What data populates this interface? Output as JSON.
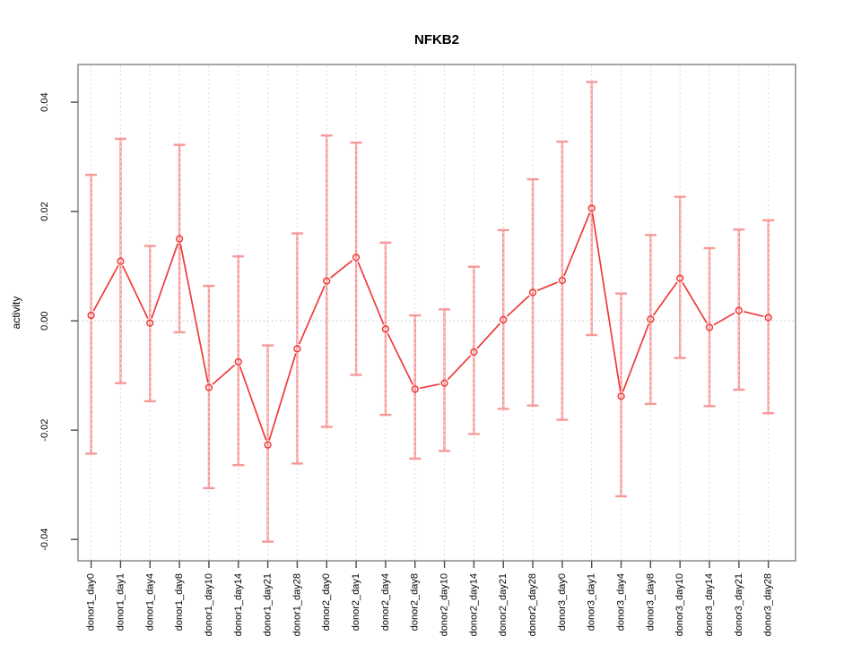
{
  "window": {
    "background": "#ffffff"
  },
  "chart_data": {
    "type": "line",
    "title": "NFKB2",
    "xlabel": "",
    "ylabel": "activity",
    "legend": "none",
    "ylim": [
      -0.0439,
      0.0469
    ],
    "y_ticks": [
      -0.04,
      -0.02,
      0.0,
      0.02,
      0.04
    ],
    "y_tick_labels": [
      "-0.04",
      "-0.02",
      "0.00",
      "0.02",
      "0.04"
    ],
    "grid": {
      "vertical_dashed_per_category": true,
      "horizontal_dotted_zero_line": true
    },
    "marker": "open-circle",
    "colors": {
      "series": "#ee3b3a",
      "error_bars": "#f59a98",
      "grid": "#dcdcdc",
      "zero_line": "#c6c6c6",
      "axis_box": "#9c9c9c",
      "tick": "#4a4a4a",
      "text": "#000000"
    },
    "categories": [
      "donor1_day0",
      "donor1_day1",
      "donor1_day4",
      "donor1_day8",
      "donor1_day10",
      "donor1_day14",
      "donor1_day21",
      "donor1_day28",
      "donor2_day0",
      "donor2_day1",
      "donor2_day4",
      "donor2_day8",
      "donor2_day10",
      "donor2_day14",
      "donor2_day21",
      "donor2_day28",
      "donor3_day0",
      "donor3_day1",
      "donor3_day4",
      "donor3_day8",
      "donor3_day10",
      "donor3_day14",
      "donor3_day21",
      "donor3_day28"
    ],
    "series": [
      {
        "name": "activity",
        "values": [
          0.001,
          0.0109,
          -0.0004,
          0.015,
          -0.0122,
          -0.0075,
          -0.0227,
          -0.0051,
          0.0073,
          0.0116,
          -0.0015,
          -0.0125,
          -0.0114,
          -0.0057,
          0.0002,
          0.0052,
          0.0074,
          0.0206,
          -0.0138,
          0.0003,
          0.0078,
          -0.0012,
          0.0019,
          0.0006
        ],
        "error_high": [
          0.0267,
          0.0333,
          0.0137,
          0.0322,
          0.0064,
          0.0118,
          -0.0045,
          0.016,
          0.0339,
          0.0326,
          0.0143,
          0.001,
          0.0021,
          0.0099,
          0.0166,
          0.0259,
          0.0328,
          0.0437,
          0.005,
          0.0157,
          0.0227,
          0.0133,
          0.0167,
          0.0184
        ],
        "error_low": [
          -0.0243,
          -0.0114,
          -0.0147,
          -0.0021,
          -0.0306,
          -0.0264,
          -0.0404,
          -0.0261,
          -0.0194,
          -0.0099,
          -0.0172,
          -0.0252,
          -0.0238,
          -0.0207,
          -0.0161,
          -0.0155,
          -0.0181,
          -0.0026,
          -0.0321,
          -0.0152,
          -0.0068,
          -0.0156,
          -0.0126,
          -0.0169
        ]
      }
    ]
  }
}
